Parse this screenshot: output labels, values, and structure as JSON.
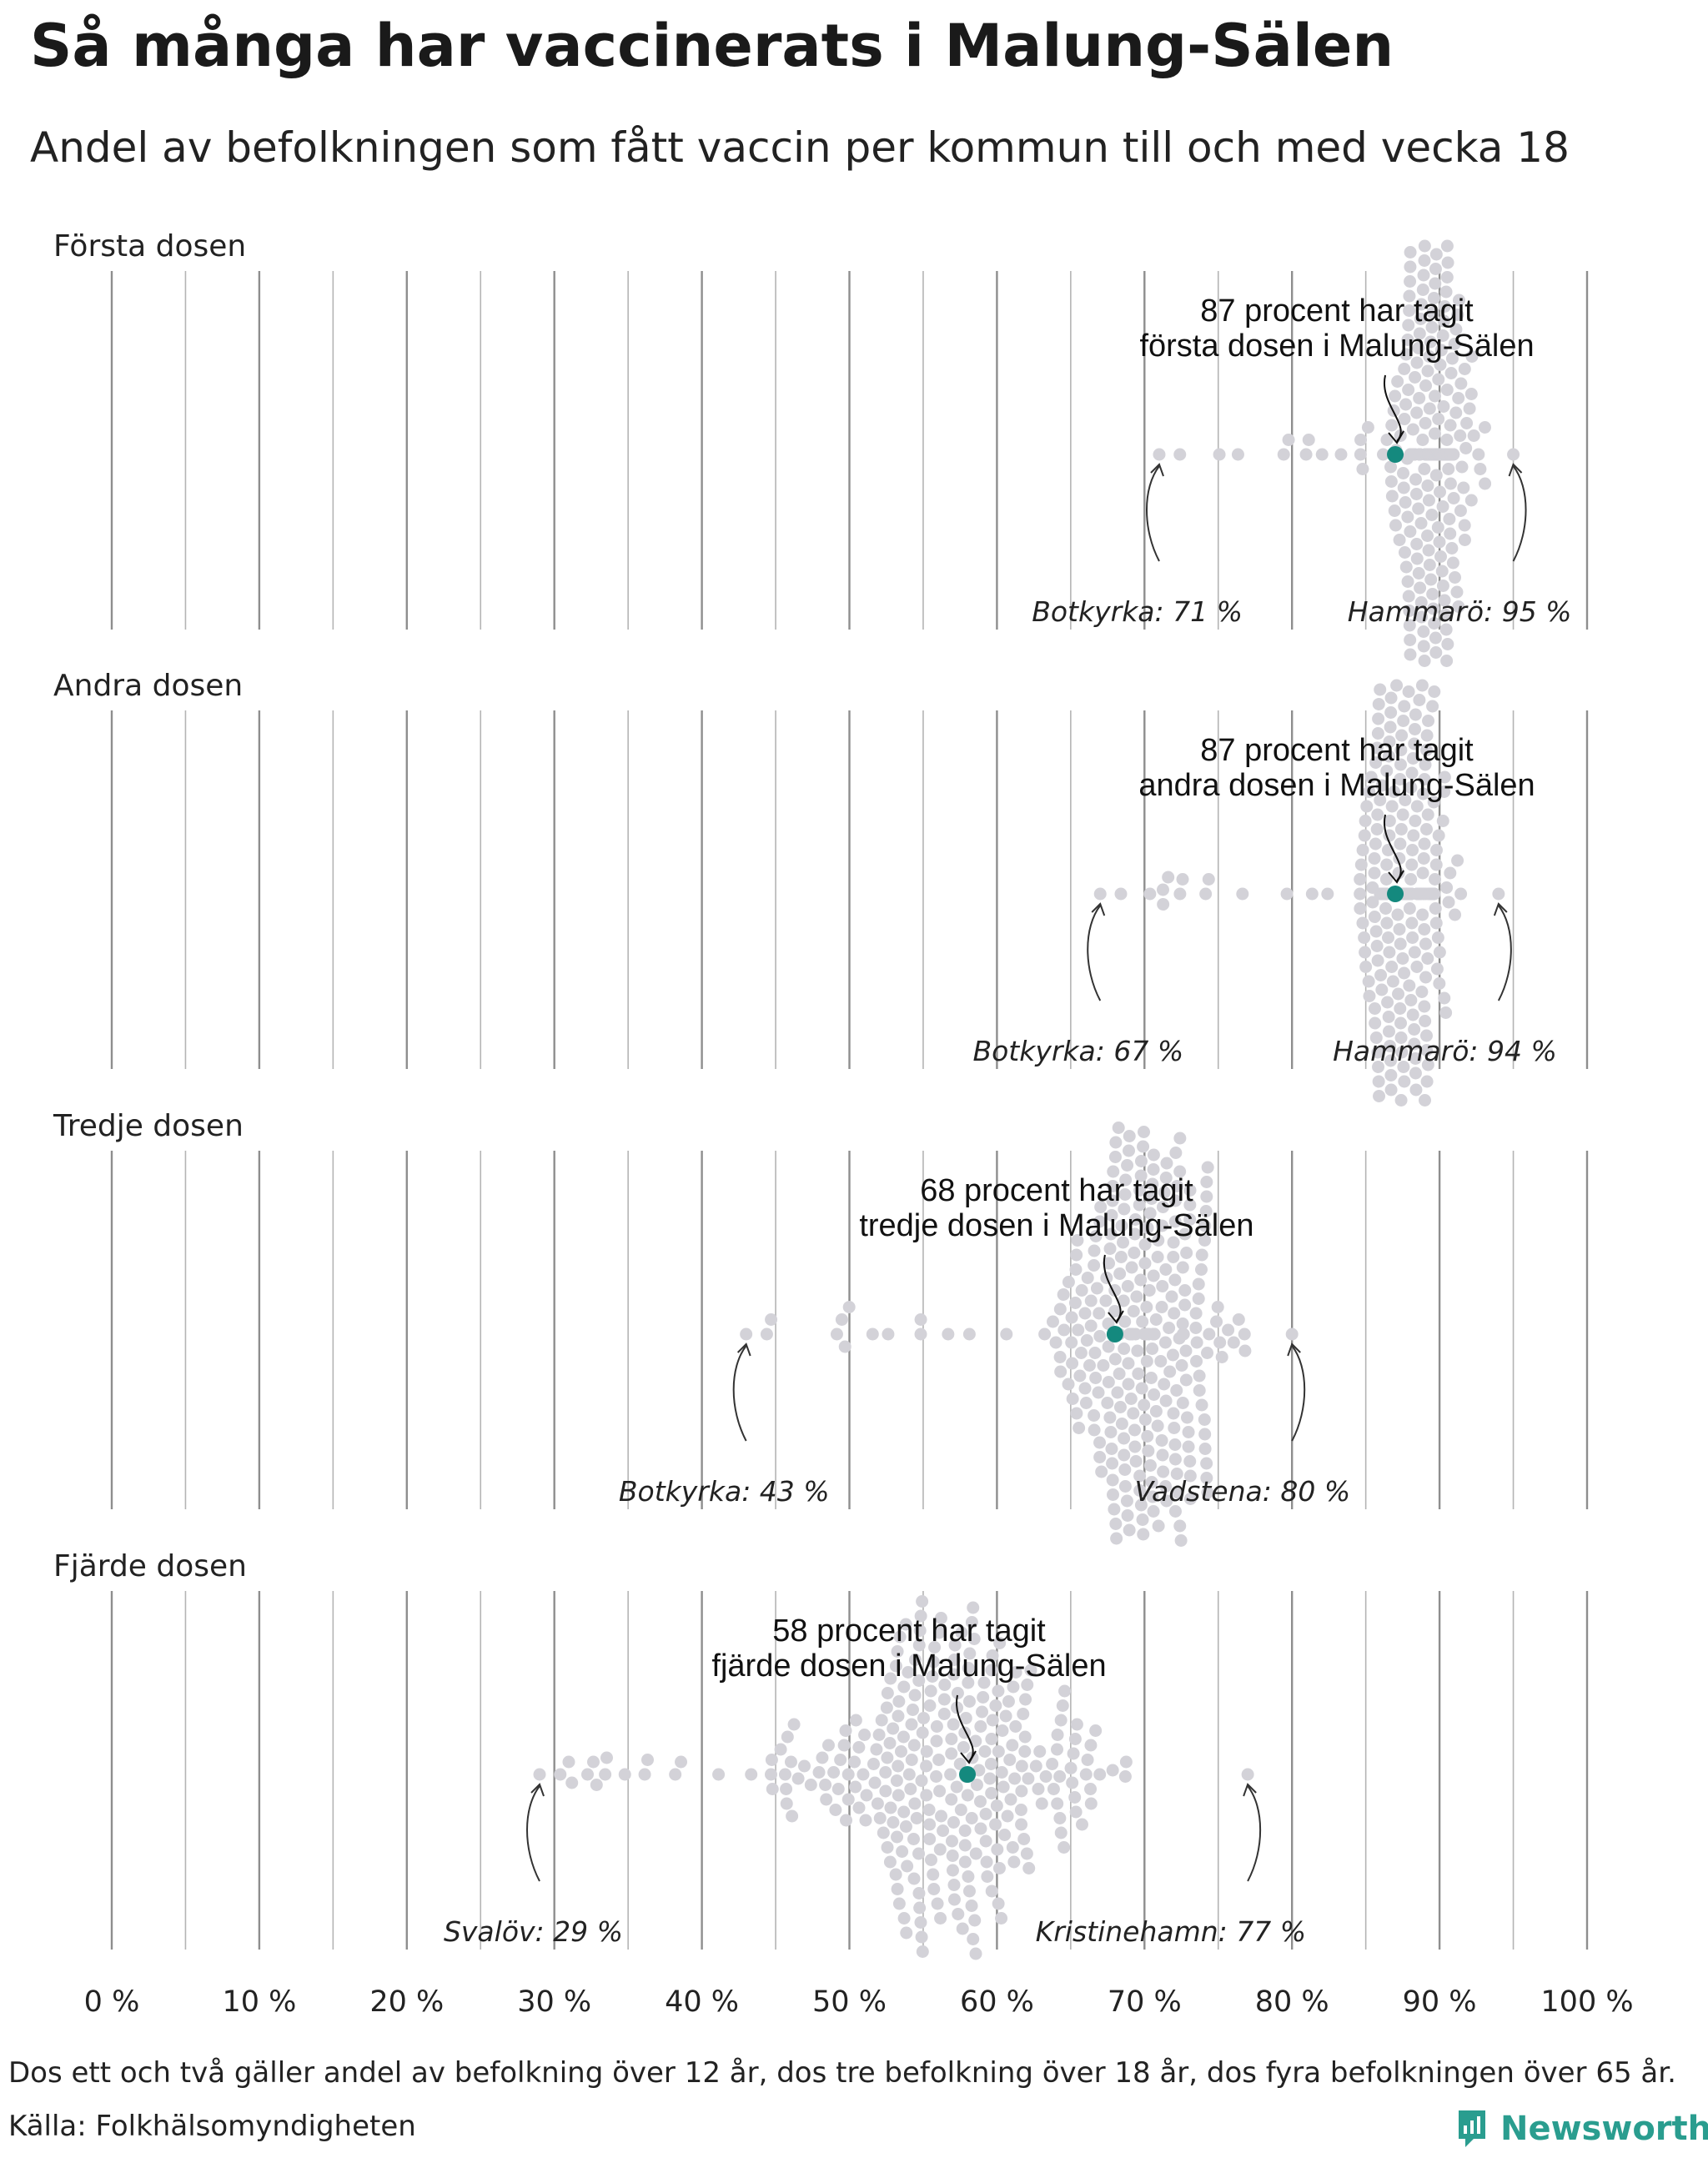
{
  "header": {
    "title": "Så många har vaccinerats i Malung-Sälen",
    "subtitle": "Andel av befolkningen som fått vaccin per kommun till och med vecka 18"
  },
  "colors": {
    "dot": "#d3d2d8",
    "highlight": "#14897e",
    "grid": "#9a9a9a",
    "brand": "#2a9d8f"
  },
  "chart_data": {
    "type": "scatter",
    "subtype": "beeswarm",
    "xlim": [
      0,
      100
    ],
    "x_ticks": [
      0,
      10,
      20,
      30,
      40,
      50,
      60,
      70,
      80,
      90,
      100
    ],
    "x_tick_labels": [
      "0 %",
      "10 %",
      "20 %",
      "30 %",
      "40 %",
      "50 %",
      "60 %",
      "70 %",
      "80 %",
      "90 %",
      "100 %"
    ],
    "grid": true,
    "panels": [
      {
        "label": "Första dosen",
        "highlight_value": 87,
        "highlight_text": [
          "87 procent har tagit",
          "första dosen i Malung-Sälen"
        ],
        "min": {
          "value": 71,
          "label": "Botkyrka: 71 %"
        },
        "max": {
          "value": 95,
          "label": "Hammarö: 95 %"
        },
        "distribution": {
          "center": 89.5,
          "spread": 2.2
        }
      },
      {
        "label": "Andra dosen",
        "highlight_value": 87,
        "highlight_text": [
          "87 procent har tagit",
          "andra dosen i Malung-Sälen"
        ],
        "min": {
          "value": 67,
          "label": "Botkyrka: 67 %"
        },
        "max": {
          "value": 94,
          "label": "Hammarö: 94 %"
        },
        "distribution": {
          "center": 87.5,
          "spread": 2.6
        }
      },
      {
        "label": "Tredje dosen",
        "highlight_value": 68,
        "highlight_text": [
          "68 procent har tagit",
          "tredje dosen i Malung-Sälen"
        ],
        "min": {
          "value": 43,
          "label": "Botkyrka: 43 %"
        },
        "max": {
          "value": 80,
          "label": "Vadstena: 80 %"
        },
        "distribution": {
          "center": 70,
          "spread": 4.5
        }
      },
      {
        "label": "Fjärde dosen",
        "highlight_value": 58,
        "highlight_text": [
          "58 procent har tagit",
          "fjärde dosen i Malung-Sälen"
        ],
        "min": {
          "value": 29,
          "label": "Svalöv: 29 %"
        },
        "max": {
          "value": 77,
          "label": "Kristinehamn: 77 %"
        },
        "distribution": {
          "center": 57,
          "spread": 8.5
        }
      }
    ]
  },
  "footer": {
    "note": "Dos ett och två gäller andel av befolkning över 12 år, dos tre befolkning över 18 år, dos fyra befolkningen över 65 år.",
    "source": "Källa: Folkhälsomyndigheten",
    "brand": "Newsworthy"
  }
}
